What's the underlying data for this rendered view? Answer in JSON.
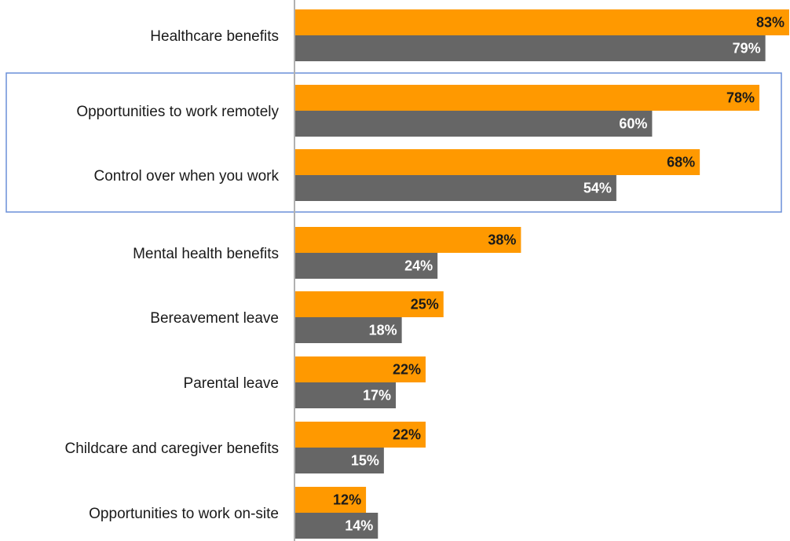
{
  "chart_data": {
    "type": "bar",
    "orientation": "horizontal",
    "categories": [
      "Healthcare benefits",
      "Opportunities to work remotely",
      "Control over when you work",
      "Mental health benefits",
      "Bereavement leave",
      "Parental leave",
      "Childcare and caregiver benefits",
      "Opportunities to work on-site"
    ],
    "series": [
      {
        "values": [
          83,
          78,
          68,
          38,
          25,
          22,
          22,
          12
        ],
        "labels": [
          "83%",
          "78%",
          "68%",
          "38%",
          "25%",
          "22%",
          "22%",
          "12%"
        ]
      },
      {
        "values": [
          79,
          60,
          54,
          24,
          18,
          17,
          15,
          14
        ],
        "labels": [
          "79%",
          "60%",
          "54%",
          "24%",
          "18%",
          "17%",
          "15%",
          "14%"
        ]
      }
    ],
    "colors": {
      "series_1": "#FF9900",
      "series_2": "#666666",
      "series_1_label": "#1a1a1a",
      "series_2_label": "#ffffff",
      "highlight_box": "#6A8FD8",
      "axis": "#B0B0B0"
    },
    "highlighted_categories": [
      "Opportunities to work remotely",
      "Control over when you work"
    ],
    "xlim": [
      0,
      83
    ],
    "title": "",
    "xlabel": "",
    "ylabel": "",
    "grid": false,
    "legend": "none"
  }
}
